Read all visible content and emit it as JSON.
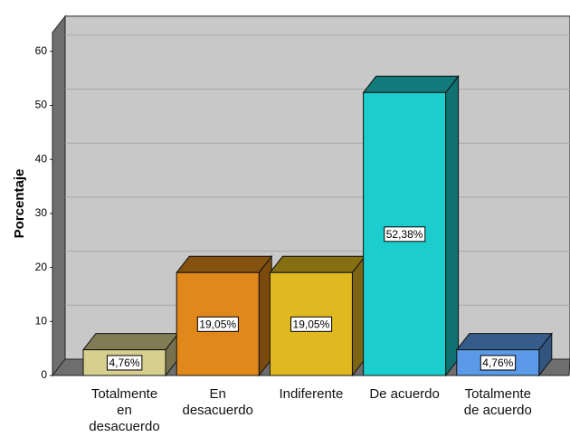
{
  "chart_data": {
    "type": "bar3d",
    "y_label": "Porcentaje",
    "categories": [
      "Totalmente en desacuerdo",
      "En desacuerdo",
      "Indiferente",
      "De acuerdo",
      "Totalmente de acuerdo"
    ],
    "values": [
      4.76,
      19.05,
      19.05,
      52.38,
      4.76
    ],
    "value_labels": [
      "4,76%",
      "19,05%",
      "19,05%",
      "52,38%",
      "4,76%"
    ],
    "colors": [
      "#d6cf8e",
      "#e0891a",
      "#e0b820",
      "#1ccdcd",
      "#5a9ae8"
    ],
    "ylim": [
      0,
      63.5
    ],
    "yticks": [
      0,
      10,
      20,
      30,
      40,
      50,
      60
    ],
    "grid": true
  }
}
